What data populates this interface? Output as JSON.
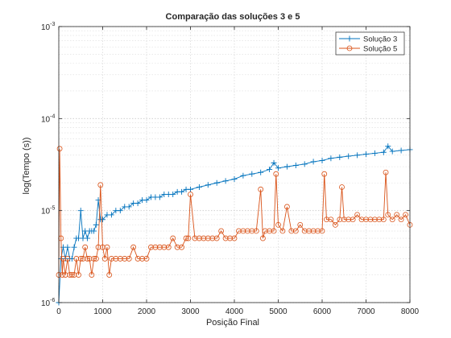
{
  "chart_data": {
    "type": "line",
    "title": "Comparação das soluções 3 e 5",
    "xlabel": "Posição Final",
    "ylabel": "log(Tempo (s))",
    "xlim": [
      0,
      8000
    ],
    "ylim": [
      1e-06,
      0.001
    ],
    "yscale": "log",
    "grid": true,
    "minor_grid": true,
    "legend_position": "top-right",
    "x_ticks": [
      0,
      1000,
      2000,
      3000,
      4000,
      5000,
      6000,
      7000,
      8000
    ],
    "x_tick_labels": [
      "0",
      "1000",
      "2000",
      "3000",
      "4000",
      "5000",
      "6000",
      "7000",
      "8000"
    ],
    "y_ticks": [
      1e-06,
      1e-05,
      0.0001,
      0.001
    ],
    "y_tick_labels": [
      {
        "base": "10",
        "exp": "-6"
      },
      {
        "base": "10",
        "exp": "-5"
      },
      {
        "base": "10",
        "exp": "-4"
      },
      {
        "base": "10",
        "exp": "-3"
      }
    ],
    "series": [
      {
        "name": "Solução 3",
        "color": "#0072BD",
        "marker": "plus",
        "x": [
          0,
          50,
          100,
          150,
          200,
          250,
          300,
          350,
          400,
          450,
          500,
          550,
          600,
          650,
          700,
          750,
          800,
          850,
          900,
          950,
          1000,
          1100,
          1200,
          1300,
          1400,
          1500,
          1600,
          1700,
          1800,
          1900,
          2000,
          2100,
          2200,
          2300,
          2400,
          2500,
          2600,
          2700,
          2800,
          2900,
          3000,
          3200,
          3400,
          3600,
          3800,
          4000,
          4200,
          4400,
          4600,
          4800,
          4900,
          5000,
          5200,
          5400,
          5600,
          5800,
          6000,
          6200,
          6400,
          6600,
          6800,
          7000,
          7200,
          7400,
          7500,
          7600,
          7800,
          8000
        ],
        "y": [
          1e-06,
          3e-06,
          4e-06,
          3e-06,
          4e-06,
          3e-06,
          3e-06,
          4e-06,
          5e-06,
          5e-06,
          1e-05,
          5e-06,
          6e-06,
          5e-06,
          6e-06,
          6e-06,
          6e-06,
          7e-06,
          1.3e-05,
          8e-06,
          8e-06,
          9e-06,
          9e-06,
          1e-05,
          1e-05,
          1.1e-05,
          1.1e-05,
          1.2e-05,
          1.2e-05,
          1.3e-05,
          1.3e-05,
          1.4e-05,
          1.4e-05,
          1.4e-05,
          1.5e-05,
          1.5e-05,
          1.5e-05,
          1.6e-05,
          1.6e-05,
          1.7e-05,
          1.7e-05,
          1.8e-05,
          1.9e-05,
          2e-05,
          2.1e-05,
          2.2e-05,
          2.4e-05,
          2.5e-05,
          2.6e-05,
          2.8e-05,
          3.3e-05,
          2.9e-05,
          3e-05,
          3.1e-05,
          3.2e-05,
          3.4e-05,
          3.5e-05,
          3.7e-05,
          3.8e-05,
          3.9e-05,
          4e-05,
          4.1e-05,
          4.2e-05,
          4.3e-05,
          5e-05,
          4.4e-05,
          4.5e-05,
          4.6e-05
        ]
      },
      {
        "name": "Solução 5",
        "color": "#D95319",
        "marker": "circle",
        "x": [
          0,
          20,
          50,
          80,
          100,
          150,
          200,
          250,
          300,
          350,
          400,
          450,
          500,
          550,
          600,
          650,
          700,
          750,
          800,
          850,
          900,
          950,
          1000,
          1050,
          1100,
          1150,
          1200,
          1300,
          1400,
          1500,
          1600,
          1700,
          1800,
          1900,
          2000,
          2100,
          2200,
          2300,
          2400,
          2500,
          2600,
          2700,
          2800,
          2900,
          2950,
          3000,
          3100,
          3200,
          3300,
          3400,
          3500,
          3600,
          3700,
          3800,
          3900,
          4000,
          4100,
          4200,
          4300,
          4400,
          4500,
          4600,
          4650,
          4700,
          4800,
          4900,
          4950,
          5000,
          5100,
          5200,
          5300,
          5400,
          5500,
          5600,
          5700,
          5800,
          5900,
          6000,
          6050,
          6100,
          6200,
          6300,
          6400,
          6450,
          6500,
          6600,
          6700,
          6800,
          6900,
          7000,
          7100,
          7200,
          7300,
          7400,
          7450,
          7500,
          7600,
          7700,
          7800,
          7900,
          8000
        ],
        "y": [
          2e-06,
          4.7e-05,
          5e-06,
          2e-06,
          3e-06,
          2e-06,
          3e-06,
          2e-06,
          2e-06,
          2e-06,
          3e-06,
          2e-06,
          3e-06,
          3e-06,
          4e-06,
          3e-06,
          3e-06,
          2e-06,
          3e-06,
          3e-06,
          4e-06,
          1.9e-05,
          4e-06,
          3e-06,
          4e-06,
          2e-06,
          3e-06,
          3e-06,
          3e-06,
          3e-06,
          3e-06,
          4e-06,
          3e-06,
          3e-06,
          3e-06,
          4e-06,
          4e-06,
          4e-06,
          4e-06,
          4e-06,
          5e-06,
          4e-06,
          4e-06,
          5e-06,
          5e-06,
          1.5e-05,
          5e-06,
          5e-06,
          5e-06,
          5e-06,
          5e-06,
          5e-06,
          6e-06,
          5e-06,
          5e-06,
          5e-06,
          6e-06,
          6e-06,
          6e-06,
          6e-06,
          6e-06,
          1.7e-05,
          5e-06,
          6e-06,
          6e-06,
          6e-06,
          2.5e-05,
          7e-06,
          6e-06,
          1.1e-05,
          6e-06,
          6e-06,
          7e-06,
          6e-06,
          6e-06,
          6e-06,
          6e-06,
          6e-06,
          2.5e-05,
          8e-06,
          8e-06,
          7e-06,
          8e-06,
          1.8e-05,
          8e-06,
          8e-06,
          8e-06,
          9e-06,
          8e-06,
          8e-06,
          8e-06,
          8e-06,
          8e-06,
          8e-06,
          2.6e-05,
          9e-06,
          8e-06,
          9e-06,
          8e-06,
          9e-06,
          7e-06
        ]
      }
    ]
  }
}
